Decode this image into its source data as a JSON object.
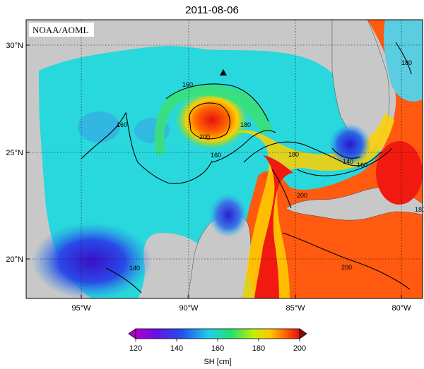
{
  "title": "2011-08-06",
  "credit": "NOAA/AOML",
  "lat_labels": [
    "30°N",
    "25°N",
    "20°N"
  ],
  "lon_labels": [
    "95°W",
    "90°W",
    "85°W",
    "80°W"
  ],
  "contour_labels": [
    "160",
    "160",
    "200",
    "180",
    "160",
    "180",
    "140",
    "160",
    "180",
    "200",
    "140",
    "200",
    "180"
  ],
  "colorbar": {
    "label": "SH [cm]",
    "ticks": [
      "120",
      "140",
      "160",
      "180",
      "200"
    ],
    "min": 120,
    "max": 200
  },
  "colors": {
    "land": "#c8c8c8",
    "ocean_low": "#6a0fd0",
    "ocean_mid": "#22e0d8",
    "ocean_high": "#f02a10"
  }
}
